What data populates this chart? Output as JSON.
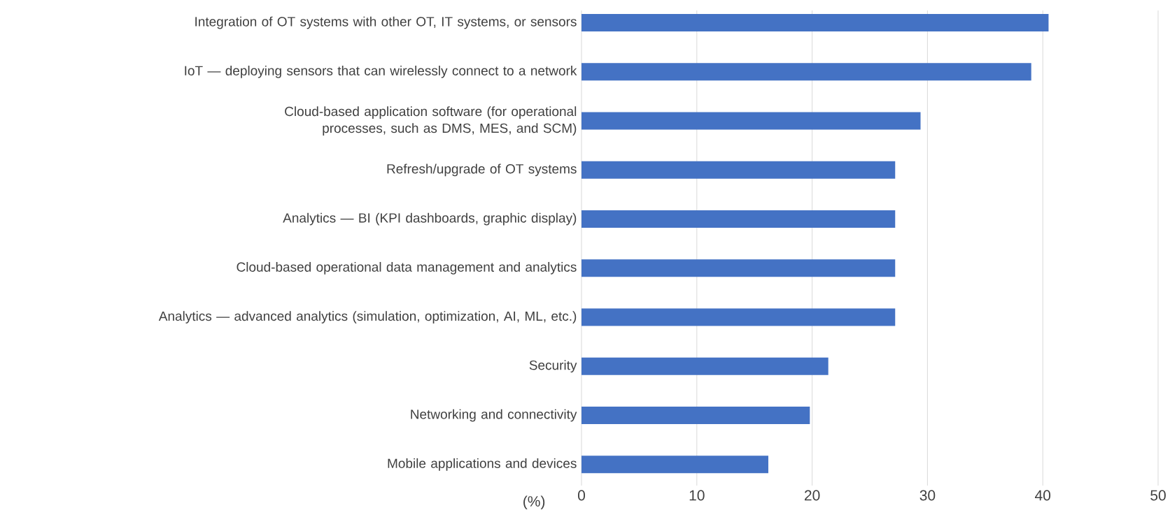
{
  "chart_data": {
    "type": "bar",
    "orientation": "horizontal",
    "xlabel": "(%)",
    "categories": [
      "Integration of OT systems with other OT, IT systems, or sensors",
      "IoT — deploying sensors that can wirelessly connect to a network",
      "Cloud-based application software (for operational processes, such as DMS, MES, and SCM)",
      "Refresh/upgrade of OT systems",
      "Analytics — BI (KPI dashboards, graphic display)",
      "Cloud-based operational data management and analytics",
      "Analytics — advanced analytics (simulation, optimization, AI, ML, etc.)",
      "Security",
      "Networking and connectivity",
      "Mobile applications and devices"
    ],
    "values": [
      40.5,
      39.0,
      29.4,
      27.2,
      27.2,
      27.2,
      27.2,
      21.4,
      19.8,
      16.2
    ],
    "color": "#4472c4",
    "xlim": [
      0,
      50
    ],
    "xticks": [
      0,
      10,
      20,
      30,
      40,
      50
    ],
    "grid": "x"
  }
}
